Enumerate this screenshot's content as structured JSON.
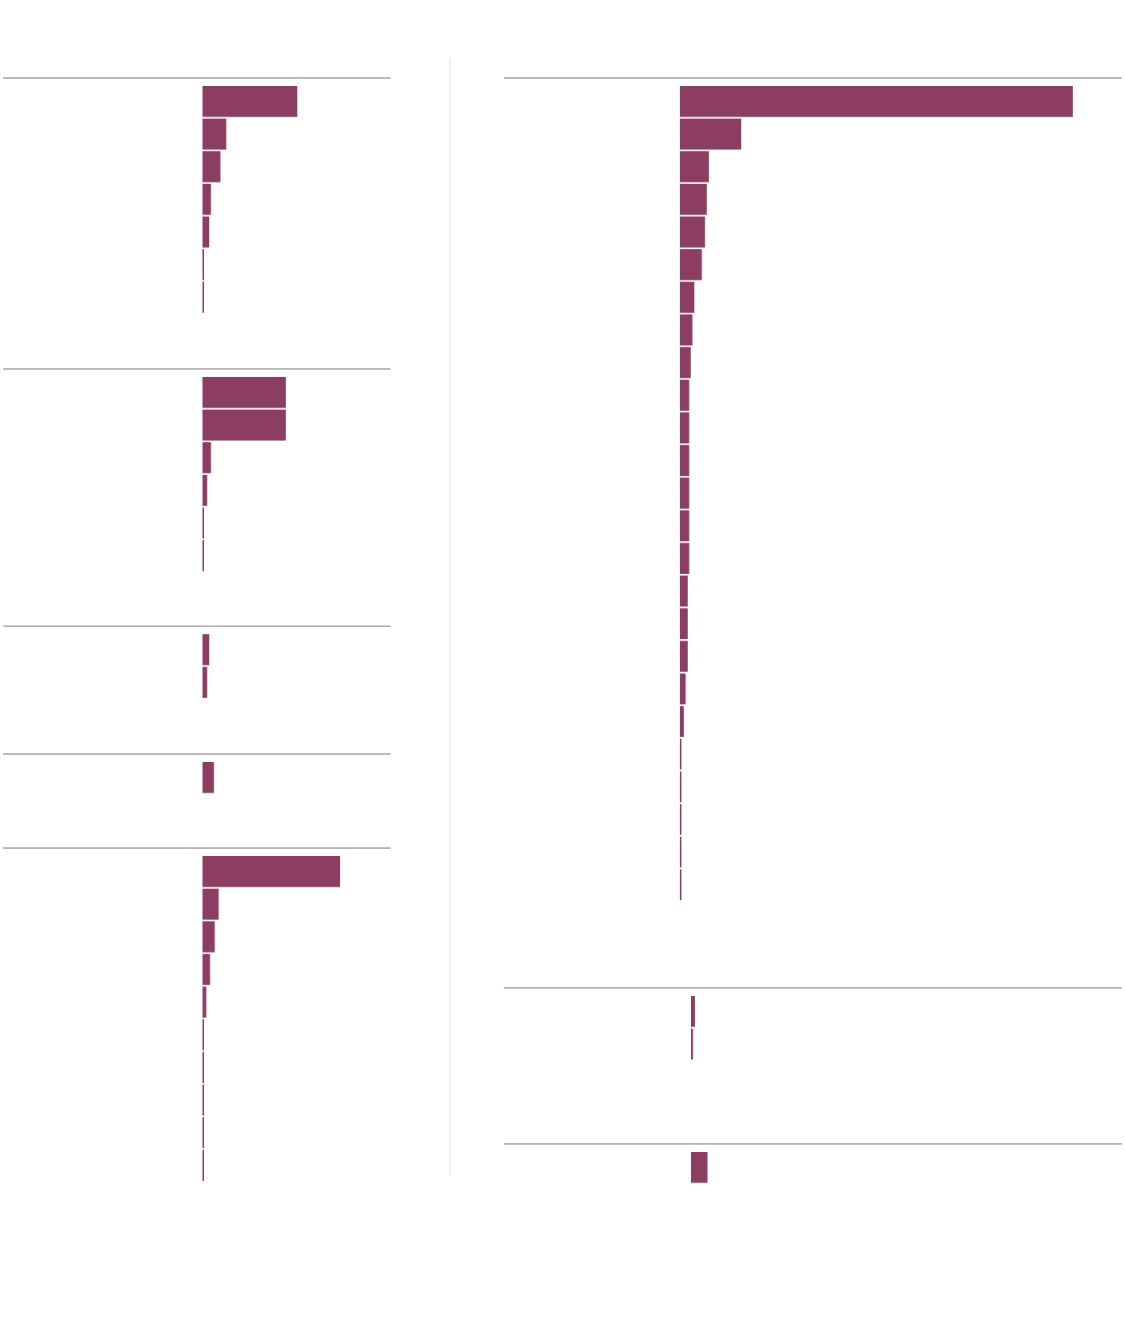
{
  "colors": {
    "bar": "#8b3e62",
    "rule": "#666666",
    "divider": "#dddddd",
    "background": "#ffffff"
  },
  "chart_data": [
    {
      "type": "bar",
      "orientation": "horizontal",
      "values": [
        100,
        25,
        19,
        9,
        7,
        1,
        1
      ]
    },
    {
      "type": "bar",
      "orientation": "horizontal",
      "values": [
        88,
        88,
        9,
        5,
        1,
        1
      ]
    },
    {
      "type": "bar",
      "orientation": "horizontal",
      "values": [
        7,
        5
      ]
    },
    {
      "type": "bar",
      "orientation": "horizontal",
      "values": [
        12
      ]
    },
    {
      "type": "bar",
      "orientation": "horizontal",
      "values": [
        145,
        17,
        13,
        8,
        4,
        1,
        1,
        1,
        1,
        1
      ]
    },
    {
      "type": "bar",
      "orientation": "horizontal",
      "values": [
        100,
        15.6,
        7.4,
        6.9,
        6.4,
        5.6,
        3.7,
        3.2,
        2.8,
        2.4,
        2.4,
        2.4,
        2.4,
        2.4,
        2.4,
        2,
        2,
        2,
        1.5,
        1,
        0.4,
        0.4,
        0.4,
        0.4,
        0.4
      ]
    },
    {
      "type": "bar",
      "orientation": "horizontal",
      "values": [
        1,
        0.5
      ]
    },
    {
      "type": "bar",
      "orientation": "horizontal",
      "values": [
        4.2
      ]
    }
  ]
}
